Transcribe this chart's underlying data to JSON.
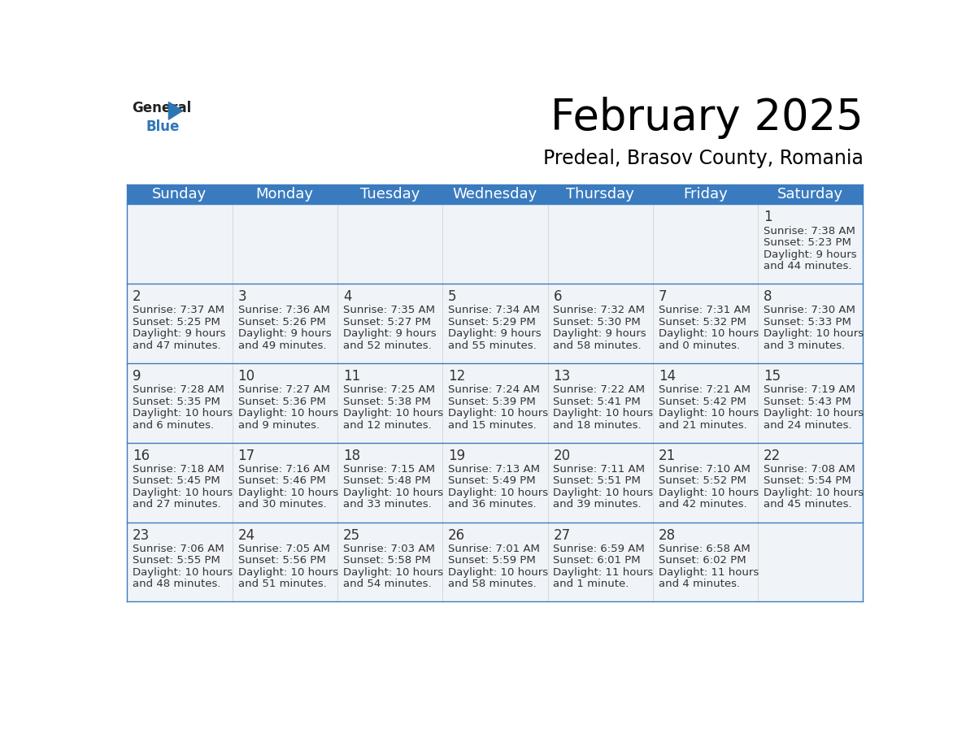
{
  "title": "February 2025",
  "subtitle": "Predeal, Brasov County, Romania",
  "header_bg": "#3a7bbf",
  "header_text": "#ffffff",
  "cell_bg": "#f0f4f8",
  "border_color": "#3a7bbf",
  "text_color": "#333333",
  "day_names": [
    "Sunday",
    "Monday",
    "Tuesday",
    "Wednesday",
    "Thursday",
    "Friday",
    "Saturday"
  ],
  "title_fontsize": 38,
  "subtitle_fontsize": 17,
  "header_fontsize": 13,
  "day_num_fontsize": 12,
  "info_fontsize": 9.5,
  "calendar": [
    [
      null,
      null,
      null,
      null,
      null,
      null,
      {
        "day": 1,
        "sunrise": "7:38 AM",
        "sunset": "5:23 PM",
        "daylight_h": "9 hours",
        "daylight_m": "44 minutes."
      }
    ],
    [
      {
        "day": 2,
        "sunrise": "7:37 AM",
        "sunset": "5:25 PM",
        "daylight_h": "9 hours",
        "daylight_m": "47 minutes."
      },
      {
        "day": 3,
        "sunrise": "7:36 AM",
        "sunset": "5:26 PM",
        "daylight_h": "9 hours",
        "daylight_m": "49 minutes."
      },
      {
        "day": 4,
        "sunrise": "7:35 AM",
        "sunset": "5:27 PM",
        "daylight_h": "9 hours",
        "daylight_m": "52 minutes."
      },
      {
        "day": 5,
        "sunrise": "7:34 AM",
        "sunset": "5:29 PM",
        "daylight_h": "9 hours",
        "daylight_m": "55 minutes."
      },
      {
        "day": 6,
        "sunrise": "7:32 AM",
        "sunset": "5:30 PM",
        "daylight_h": "9 hours",
        "daylight_m": "58 minutes."
      },
      {
        "day": 7,
        "sunrise": "7:31 AM",
        "sunset": "5:32 PM",
        "daylight_h": "10 hours",
        "daylight_m": "0 minutes."
      },
      {
        "day": 8,
        "sunrise": "7:30 AM",
        "sunset": "5:33 PM",
        "daylight_h": "10 hours",
        "daylight_m": "3 minutes."
      }
    ],
    [
      {
        "day": 9,
        "sunrise": "7:28 AM",
        "sunset": "5:35 PM",
        "daylight_h": "10 hours",
        "daylight_m": "6 minutes."
      },
      {
        "day": 10,
        "sunrise": "7:27 AM",
        "sunset": "5:36 PM",
        "daylight_h": "10 hours",
        "daylight_m": "9 minutes."
      },
      {
        "day": 11,
        "sunrise": "7:25 AM",
        "sunset": "5:38 PM",
        "daylight_h": "10 hours",
        "daylight_m": "12 minutes."
      },
      {
        "day": 12,
        "sunrise": "7:24 AM",
        "sunset": "5:39 PM",
        "daylight_h": "10 hours",
        "daylight_m": "15 minutes."
      },
      {
        "day": 13,
        "sunrise": "7:22 AM",
        "sunset": "5:41 PM",
        "daylight_h": "10 hours",
        "daylight_m": "18 minutes."
      },
      {
        "day": 14,
        "sunrise": "7:21 AM",
        "sunset": "5:42 PM",
        "daylight_h": "10 hours",
        "daylight_m": "21 minutes."
      },
      {
        "day": 15,
        "sunrise": "7:19 AM",
        "sunset": "5:43 PM",
        "daylight_h": "10 hours",
        "daylight_m": "24 minutes."
      }
    ],
    [
      {
        "day": 16,
        "sunrise": "7:18 AM",
        "sunset": "5:45 PM",
        "daylight_h": "10 hours",
        "daylight_m": "27 minutes."
      },
      {
        "day": 17,
        "sunrise": "7:16 AM",
        "sunset": "5:46 PM",
        "daylight_h": "10 hours",
        "daylight_m": "30 minutes."
      },
      {
        "day": 18,
        "sunrise": "7:15 AM",
        "sunset": "5:48 PM",
        "daylight_h": "10 hours",
        "daylight_m": "33 minutes."
      },
      {
        "day": 19,
        "sunrise": "7:13 AM",
        "sunset": "5:49 PM",
        "daylight_h": "10 hours",
        "daylight_m": "36 minutes."
      },
      {
        "day": 20,
        "sunrise": "7:11 AM",
        "sunset": "5:51 PM",
        "daylight_h": "10 hours",
        "daylight_m": "39 minutes."
      },
      {
        "day": 21,
        "sunrise": "7:10 AM",
        "sunset": "5:52 PM",
        "daylight_h": "10 hours",
        "daylight_m": "42 minutes."
      },
      {
        "day": 22,
        "sunrise": "7:08 AM",
        "sunset": "5:54 PM",
        "daylight_h": "10 hours",
        "daylight_m": "45 minutes."
      }
    ],
    [
      {
        "day": 23,
        "sunrise": "7:06 AM",
        "sunset": "5:55 PM",
        "daylight_h": "10 hours",
        "daylight_m": "48 minutes."
      },
      {
        "day": 24,
        "sunrise": "7:05 AM",
        "sunset": "5:56 PM",
        "daylight_h": "10 hours",
        "daylight_m": "51 minutes."
      },
      {
        "day": 25,
        "sunrise": "7:03 AM",
        "sunset": "5:58 PM",
        "daylight_h": "10 hours",
        "daylight_m": "54 minutes."
      },
      {
        "day": 26,
        "sunrise": "7:01 AM",
        "sunset": "5:59 PM",
        "daylight_h": "10 hours",
        "daylight_m": "58 minutes."
      },
      {
        "day": 27,
        "sunrise": "6:59 AM",
        "sunset": "6:01 PM",
        "daylight_h": "11 hours",
        "daylight_m": "1 minute."
      },
      {
        "day": 28,
        "sunrise": "6:58 AM",
        "sunset": "6:02 PM",
        "daylight_h": "11 hours",
        "daylight_m": "4 minutes."
      },
      null
    ]
  ]
}
